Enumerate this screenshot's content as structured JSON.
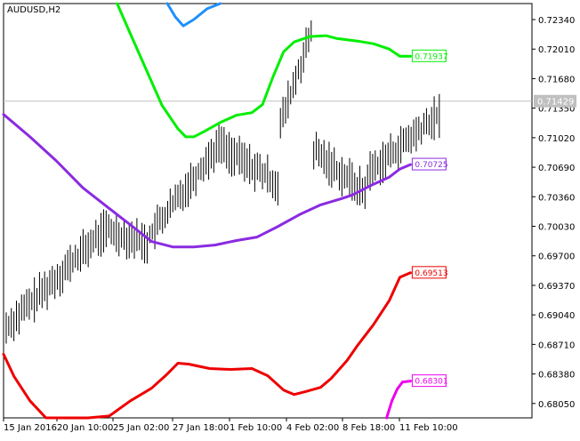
{
  "chart_data": {
    "type": "line",
    "title": "AUDUSD,H2",
    "y_range": [
      0.67889,
      0.72519
    ],
    "y_ticks": [
      "0.72340",
      "0.72010",
      "0.71680",
      "0.71350",
      "0.71020",
      "0.70690",
      "0.70360",
      "0.70030",
      "0.69700",
      "0.69370",
      "0.69040",
      "0.68710",
      "0.68380",
      "0.68050"
    ],
    "x_ticks": [
      "15 Jan 2016",
      "20 Jan 10:00",
      "25 Jan 02:00",
      "27 Jan 18:00",
      "1 Feb 10:00",
      "4 Feb 02:00",
      "8 Feb 18:00",
      "11 Feb 10:00"
    ],
    "current_price": {
      "value": 0.71429,
      "label": "0.71429",
      "color": "#c0c0c0"
    },
    "series": [
      {
        "color": "#00ee00",
        "end_label": "0.71937",
        "points": [
          [
            0.215,
            0.72519
          ],
          [
            0.24,
            0.7218
          ],
          [
            0.27,
            0.7178
          ],
          [
            0.3,
            0.7138
          ],
          [
            0.33,
            0.7112
          ],
          [
            0.345,
            0.7103
          ],
          [
            0.36,
            0.7103
          ],
          [
            0.38,
            0.7109
          ],
          [
            0.41,
            0.7119
          ],
          [
            0.44,
            0.7127
          ],
          [
            0.47,
            0.713
          ],
          [
            0.49,
            0.7139
          ],
          [
            0.51,
            0.717
          ],
          [
            0.53,
            0.7198
          ],
          [
            0.55,
            0.7209
          ],
          [
            0.58,
            0.7215
          ],
          [
            0.61,
            0.7216
          ],
          [
            0.63,
            0.7213
          ],
          [
            0.67,
            0.721
          ],
          [
            0.7,
            0.7207
          ],
          [
            0.73,
            0.7201
          ],
          [
            0.75,
            0.7193
          ],
          [
            0.77,
            0.7193
          ]
        ]
      },
      {
        "color": "#1e90ff",
        "end_label": "",
        "points": [
          [
            0.31,
            0.72519
          ],
          [
            0.325,
            0.7237
          ],
          [
            0.34,
            0.7227
          ],
          [
            0.36,
            0.7234
          ],
          [
            0.385,
            0.7246
          ],
          [
            0.41,
            0.72519
          ]
        ]
      },
      {
        "color": "#8a2be2",
        "end_label": "0.70725",
        "points": [
          [
            0.0,
            0.7128
          ],
          [
            0.05,
            0.7103
          ],
          [
            0.1,
            0.7076
          ],
          [
            0.15,
            0.7046
          ],
          [
            0.2,
            0.7023
          ],
          [
            0.25,
            0.7
          ],
          [
            0.28,
            0.6986
          ],
          [
            0.32,
            0.698
          ],
          [
            0.36,
            0.698
          ],
          [
            0.4,
            0.6982
          ],
          [
            0.44,
            0.6987
          ],
          [
            0.48,
            0.6991
          ],
          [
            0.52,
            0.7003
          ],
          [
            0.56,
            0.7016
          ],
          [
            0.6,
            0.7027
          ],
          [
            0.64,
            0.7034
          ],
          [
            0.66,
            0.7038
          ],
          [
            0.7,
            0.705
          ],
          [
            0.73,
            0.7058
          ],
          [
            0.75,
            0.7067
          ],
          [
            0.77,
            0.7072
          ]
        ]
      },
      {
        "color": "#ee0000",
        "end_label": "0.69513",
        "points": [
          [
            0.0,
            0.686
          ],
          [
            0.02,
            0.6835
          ],
          [
            0.05,
            0.6808
          ],
          [
            0.08,
            0.6789
          ],
          [
            0.12,
            0.6775
          ],
          [
            0.16,
            0.6776
          ],
          [
            0.2,
            0.6791
          ],
          [
            0.24,
            0.6808
          ],
          [
            0.28,
            0.6822
          ],
          [
            0.31,
            0.6838
          ],
          [
            0.33,
            0.685
          ],
          [
            0.35,
            0.6849
          ],
          [
            0.39,
            0.6844
          ],
          [
            0.43,
            0.6843
          ],
          [
            0.47,
            0.6844
          ],
          [
            0.5,
            0.6836
          ],
          [
            0.53,
            0.682
          ],
          [
            0.55,
            0.6815
          ],
          [
            0.57,
            0.6818
          ],
          [
            0.6,
            0.6823
          ],
          [
            0.62,
            0.6833
          ],
          [
            0.65,
            0.6853
          ],
          [
            0.67,
            0.687
          ],
          [
            0.7,
            0.6893
          ],
          [
            0.73,
            0.692
          ],
          [
            0.75,
            0.6946
          ],
          [
            0.77,
            0.6951
          ]
        ]
      },
      {
        "color": "#ee00ee",
        "end_label": "0.68301",
        "points": [
          [
            0.725,
            0.67889
          ],
          [
            0.735,
            0.6808
          ],
          [
            0.745,
            0.6821
          ],
          [
            0.755,
            0.6829
          ],
          [
            0.77,
            0.683
          ]
        ]
      }
    ]
  }
}
